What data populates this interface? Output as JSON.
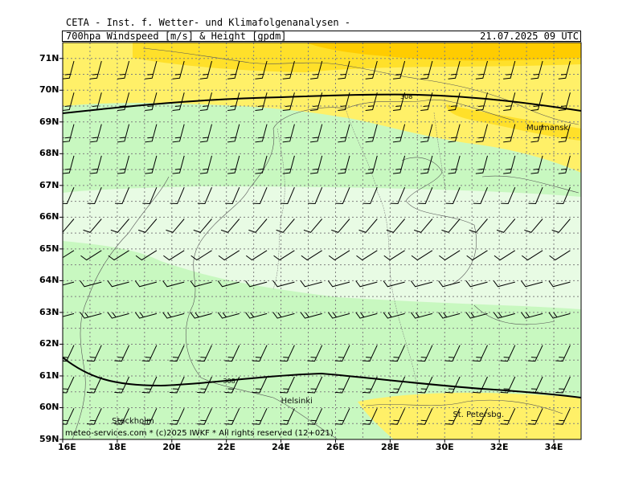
{
  "header": {
    "title": "CETA - Inst. f. Wetter- und Klimafolgenanalysen -",
    "product": "700hpa_Windspeed_[m/s]_&_Height_[gpdm]",
    "datetime": "21.07.2025 09 UTC"
  },
  "footer": "meteo-services.com * (c)2025 IWKF * All rights reserved (12+021)",
  "map": {
    "lon_range": [
      16,
      35
    ],
    "lat_range": [
      59,
      71.5
    ],
    "lat_labels": [
      "59N",
      "60N",
      "61N",
      "62N",
      "63N",
      "64N",
      "65N",
      "66N",
      "67N",
      "68N",
      "69N",
      "70N",
      "71N"
    ],
    "lon_labels": [
      "16E",
      "18E",
      "20E",
      "22E",
      "24E",
      "26E",
      "28E",
      "30E",
      "32E",
      "34E"
    ],
    "colors": {
      "light_green": "#e8fbe4",
      "green": "#c8f8c0",
      "light_yellow": "#fff068",
      "yellow": "#ffe02a",
      "orange": "#ffcc00"
    },
    "contours": [
      {
        "label": "308",
        "label_lon": 28.6,
        "label_lat": 69.8
      },
      {
        "label": "308",
        "label_lon": 22.1,
        "label_lat": 60.85
      }
    ],
    "cities": [
      {
        "name": "Murmansk",
        "lon": 33.0,
        "lat": 68.8
      },
      {
        "name": "Helsinki",
        "lon": 24.0,
        "lat": 60.2
      },
      {
        "name": "Stockholm",
        "lon": 17.8,
        "lat": 59.55
      },
      {
        "name": "St. Petersbg.",
        "lon": 30.3,
        "lat": 59.75
      }
    ]
  }
}
